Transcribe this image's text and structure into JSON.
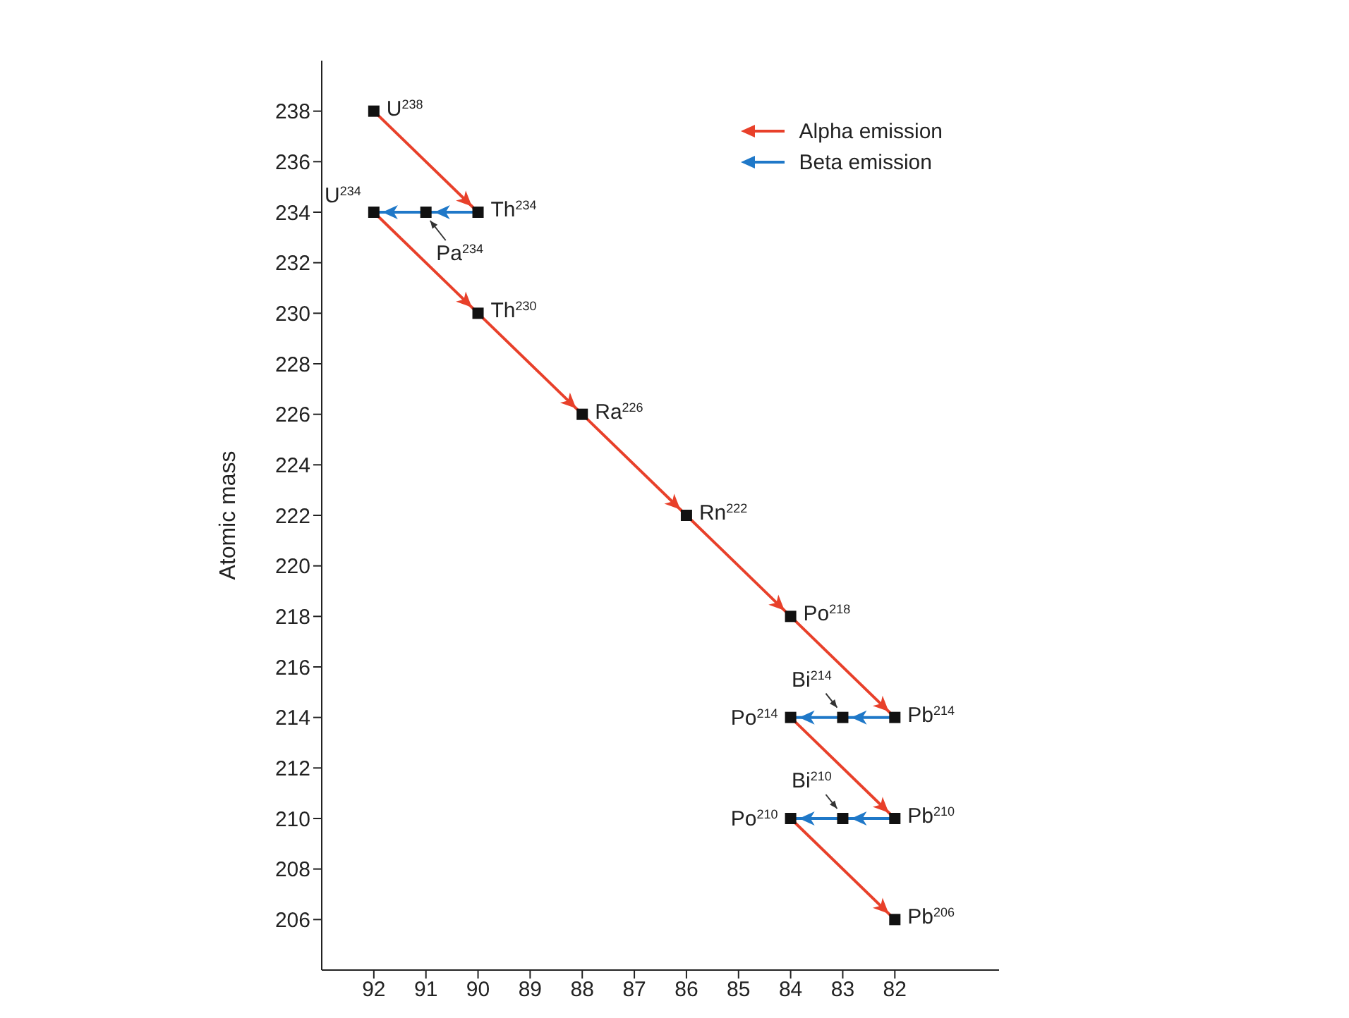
{
  "chart_data": {
    "type": "line",
    "ylabel": "Atomic mass",
    "xlim": [
      93,
      80
    ],
    "xticks": [
      92,
      91,
      90,
      89,
      88,
      87,
      86,
      85,
      84,
      83,
      82
    ],
    "ylim": [
      204,
      240
    ],
    "yticks": [
      206,
      208,
      210,
      212,
      214,
      216,
      218,
      220,
      222,
      224,
      226,
      228,
      230,
      232,
      234,
      236,
      238
    ],
    "grid": false,
    "legend": "top right",
    "series": [
      {
        "name": "Alpha emission",
        "color": "#e8402a",
        "x": [
          92,
          90
        ],
        "values": [
          238,
          234
        ]
      },
      {
        "color": "#e8402a",
        "x": [
          92,
          90,
          88,
          86,
          84,
          82
        ],
        "values": [
          234,
          230,
          226,
          222,
          218,
          214
        ]
      },
      {
        "color": "#e8402a",
        "x": [
          84,
          82
        ],
        "values": [
          214,
          210
        ]
      },
      {
        "color": "#e8402a",
        "x": [
          84,
          82
        ],
        "values": [
          210,
          206
        ]
      },
      {
        "name": "Beta emission",
        "color": "#1f78c8",
        "x": [
          90,
          91,
          92
        ],
        "values": [
          234,
          234,
          234
        ]
      },
      {
        "color": "#1f78c8",
        "x": [
          82,
          83,
          84
        ],
        "values": [
          214,
          214,
          214
        ]
      },
      {
        "color": "#1f78c8",
        "x": [
          82,
          83,
          84
        ],
        "values": [
          210,
          210,
          210
        ]
      },
      {
        "type": "scatter",
        "color": "#111111",
        "marker": "square",
        "x": [
          92,
          90,
          91,
          92,
          90,
          88,
          86,
          84,
          82,
          83,
          84,
          82,
          83,
          84,
          82
        ],
        "values": [
          238,
          234,
          234,
          234,
          230,
          226,
          222,
          218,
          214,
          214,
          214,
          210,
          210,
          210,
          206
        ]
      }
    ],
    "annotations": [
      {
        "text": "U$^{238}$",
        "x": 92,
        "y": 238
      },
      {
        "text": "Th$^{234}$",
        "x": 90,
        "y": 234
      },
      {
        "text": "Pa$^{234}$",
        "x": 91,
        "y": 234
      },
      {
        "text": "U$^{234}$",
        "x": 92,
        "y": 234
      },
      {
        "text": "Th$^{230}$",
        "x": 90,
        "y": 230
      },
      {
        "text": "Ra$^{226}$",
        "x": 88,
        "y": 226
      },
      {
        "text": "Rn$^{222}$",
        "x": 86,
        "y": 222
      },
      {
        "text": "Po$^{218}$",
        "x": 84,
        "y": 218
      },
      {
        "text": "Pb$^{214}$",
        "x": 82,
        "y": 214
      },
      {
        "text": "Bi$^{214}$",
        "x": 83,
        "y": 214
      },
      {
        "text": "Po$^{214}$",
        "x": 84,
        "y": 214
      },
      {
        "text": "Pb$^{210}$",
        "x": 82,
        "y": 210
      },
      {
        "text": "Bi$^{210}$",
        "x": 83,
        "y": 210
      },
      {
        "text": "Po$^{210}$",
        "x": 84,
        "y": 210
      },
      {
        "text": "Pb$^{206}$",
        "x": 82,
        "y": 206
      }
    ]
  }
}
